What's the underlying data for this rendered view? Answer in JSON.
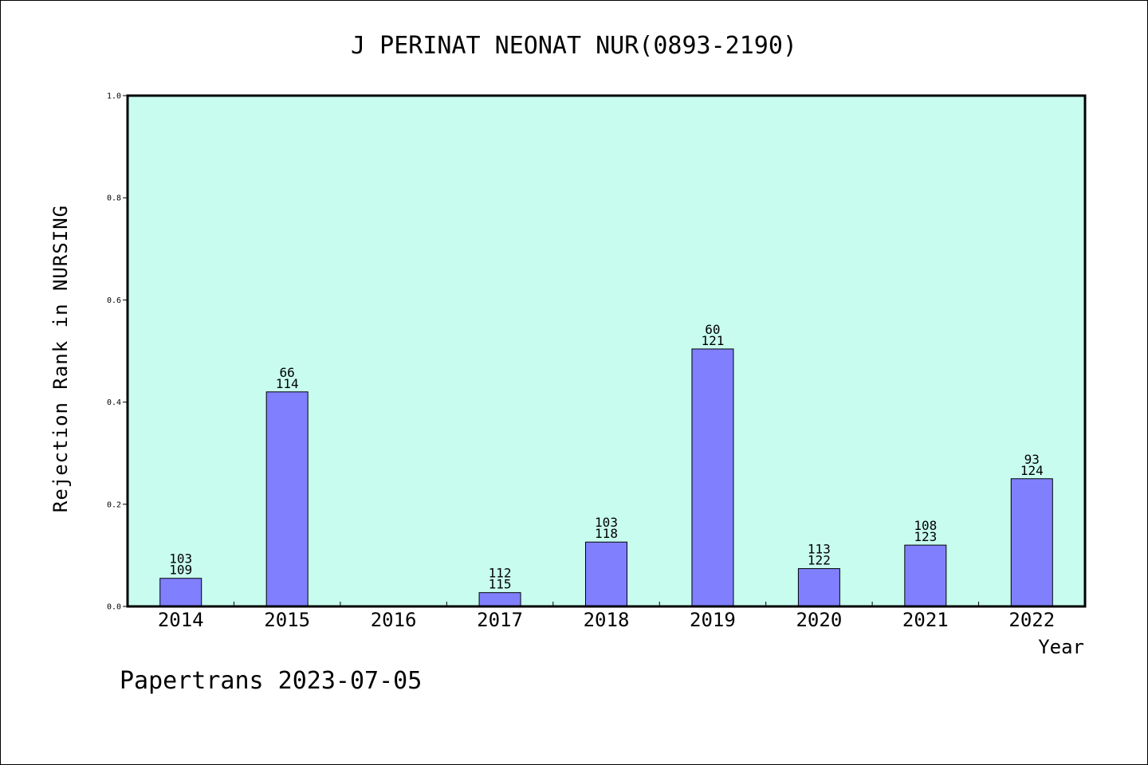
{
  "chart_data": {
    "type": "bar",
    "title": "J PERINAT NEONAT NUR(0893-2190)",
    "ylabel": "Rejection Rank in NURSING",
    "xlabel": "Year",
    "ylim": [
      0,
      1.0
    ],
    "yticks": [
      "0.0",
      "0.2",
      "0.4",
      "0.6",
      "0.8",
      "1.0"
    ],
    "categories": [
      "2014",
      "2015",
      "2016",
      "2017",
      "2018",
      "2019",
      "2020",
      "2021",
      "2022"
    ],
    "values": [
      0.055,
      0.42,
      null,
      0.027,
      0.126,
      0.504,
      0.074,
      0.12,
      0.25
    ],
    "labels_top": [
      "103",
      "66",
      "",
      "112",
      "103",
      "60",
      "113",
      "108",
      "93"
    ],
    "labels_bottom": [
      "109",
      "114",
      "",
      "115",
      "118",
      "121",
      "122",
      "123",
      "124"
    ],
    "grid": false,
    "colors": {
      "plot_background": "#c8fcee",
      "bar_fill": "#8080ff",
      "bar_stroke": "#000000"
    }
  },
  "footer": "Papertrans 2023-07-05"
}
